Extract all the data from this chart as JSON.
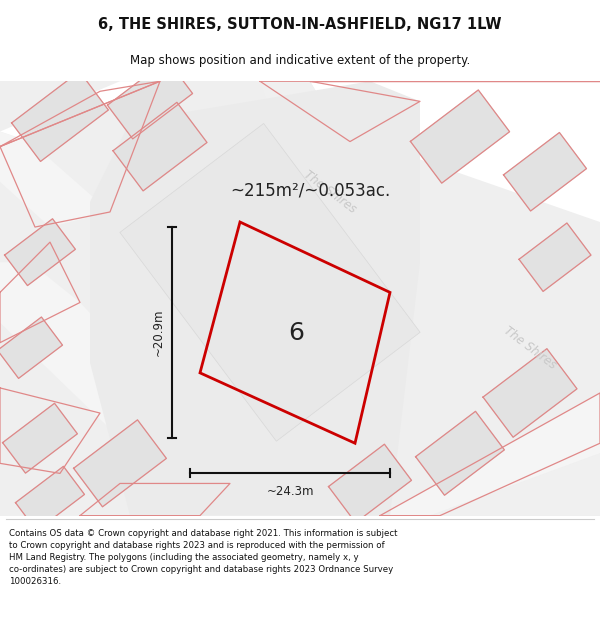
{
  "title": "6, THE SHIRES, SUTTON-IN-ASHFIELD, NG17 1LW",
  "subtitle": "Map shows position and indicative extent of the property.",
  "footer_lines": [
    "Contains OS data © Crown copyright and database right 2021. This information is subject",
    "to Crown copyright and database rights 2023 and is reproduced with the permission of",
    "HM Land Registry. The polygons (including the associated geometry, namely x, y",
    "co-ordinates) are subject to Crown copyright and database rights 2023 Ordnance Survey",
    "100026316."
  ],
  "area_label": "~215m²/~0.053ac.",
  "width_label": "~24.3m",
  "height_label": "~20.9m",
  "plot_number": "6",
  "map_bg": "#efefef",
  "pink_outline": "#e08888",
  "red_outline": "#cc0000",
  "title_color": "#111111",
  "footer_color": "#111111",
  "divider_color": "#cccccc",
  "building_fill": "#e2e2e2",
  "building_edge": "#d0d0d0",
  "road_fill": "#f8f8f8",
  "label_gray": "#c8c8c8",
  "dim_color": "#111111",
  "label_color": "#222222"
}
